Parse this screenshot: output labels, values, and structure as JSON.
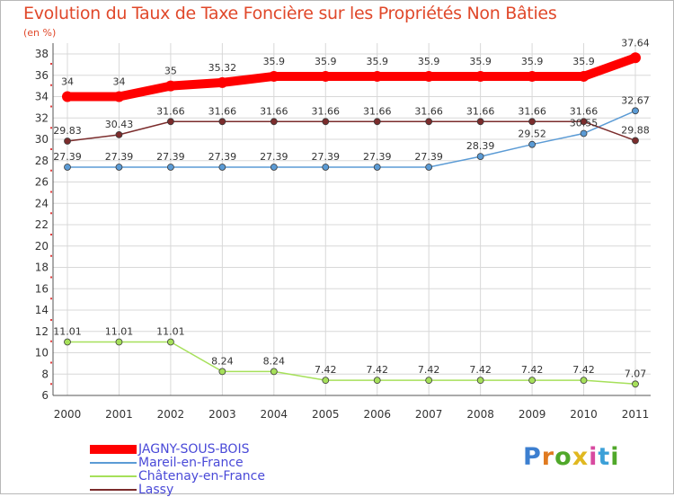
{
  "title": "Evolution du Taux de Taxe Foncière sur les Propriétés Non Bâties",
  "unit_label": "(en %)",
  "logo_text": "Proxiti",
  "chart_data": {
    "type": "line",
    "title": "Evolution du Taux de Taxe Foncière sur les Propriétés Non Bâties",
    "ylabel": "(en %)",
    "xlabel": "",
    "ylim": [
      6,
      38
    ],
    "yticks": [
      6,
      8,
      10,
      12,
      14,
      16,
      18,
      20,
      22,
      24,
      26,
      28,
      30,
      32,
      34,
      36,
      38
    ],
    "categories": [
      "2000",
      "2001",
      "2002",
      "2003",
      "2004",
      "2005",
      "2006",
      "2007",
      "2008",
      "2009",
      "2010",
      "2011"
    ],
    "legend_position": "bottom-left",
    "series": [
      {
        "name": "JAGNY-SOUS-BOIS",
        "color": "#ff0000",
        "values": [
          34,
          34,
          35,
          35.32,
          35.9,
          35.9,
          35.9,
          35.9,
          35.9,
          35.9,
          35.9,
          37.64
        ],
        "labels": [
          "34",
          "34",
          "35",
          "35.32",
          "35.9",
          "35.9",
          "35.9",
          "35.9",
          "35.9",
          "35.9",
          "35.9",
          "37.64"
        ]
      },
      {
        "name": "Mareil-en-France",
        "color": "#5b9bd5",
        "values": [
          27.39,
          27.39,
          27.39,
          27.39,
          27.39,
          27.39,
          27.39,
          27.39,
          28.39,
          29.52,
          30.55,
          32.67
        ],
        "labels": [
          "27.39",
          "27.39",
          "27.39",
          "27.39",
          "27.39",
          "27.39",
          "27.39",
          "27.39",
          "28.39",
          "29.52",
          "30.55",
          "32.67"
        ]
      },
      {
        "name": "Châtenay-en-France",
        "color": "#a6e05a",
        "values": [
          11.01,
          11.01,
          11.01,
          8.24,
          8.24,
          7.42,
          7.42,
          7.42,
          7.42,
          7.42,
          7.42,
          7.07
        ],
        "labels": [
          "11.01",
          "11.01",
          "11.01",
          "8.24",
          "8.24",
          "7.42",
          "7.42",
          "7.42",
          "7.42",
          "7.42",
          "7.42",
          "7.07"
        ]
      },
      {
        "name": "Lassy",
        "color": "#7b2c2c",
        "values": [
          29.83,
          30.43,
          31.66,
          31.66,
          31.66,
          31.66,
          31.66,
          31.66,
          31.66,
          31.66,
          31.66,
          29.88
        ],
        "labels": [
          "29.83",
          "30.43",
          "31.66",
          "31.66",
          "31.66",
          "31.66",
          "31.66",
          "31.66",
          "31.66",
          "31.66",
          "31.66",
          "29.88"
        ]
      }
    ]
  }
}
